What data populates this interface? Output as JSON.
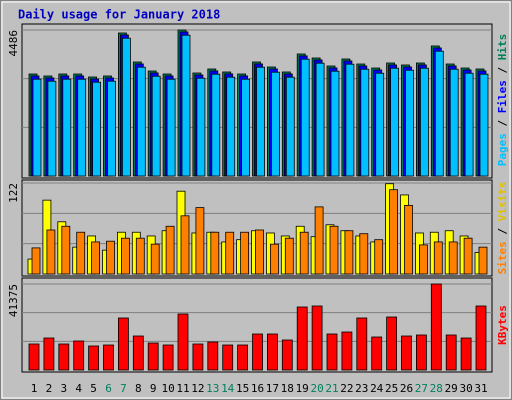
{
  "chart_data": [
    {
      "type": "bar",
      "title": "Daily usage for January 2018",
      "ylim": [
        0,
        4486
      ],
      "yticks": [
        4486
      ],
      "grid_divisions": 3,
      "series": [
        {
          "name": "Hits",
          "color": "#00805c",
          "values": [
            3134,
            3073,
            3134,
            3134,
            3042,
            3073,
            4394,
            3503,
            3226,
            3134,
            4486,
            3165,
            3288,
            3196,
            3134,
            3503,
            3349,
            3196,
            3749,
            3626,
            3380,
            3595,
            3441,
            3318,
            3472,
            3411,
            3472,
            3995,
            3441,
            3318,
            3288
          ]
        },
        {
          "name": "Files",
          "color": "#0000ff",
          "values": [
            3074,
            3013,
            3074,
            3074,
            2982,
            3013,
            4334,
            3443,
            3166,
            3074,
            4426,
            3105,
            3228,
            3136,
            3074,
            3443,
            3289,
            3136,
            3689,
            3566,
            3320,
            3535,
            3381,
            3258,
            3412,
            3351,
            3412,
            3935,
            3381,
            3258,
            3228
          ]
        },
        {
          "name": "Pages",
          "color": "#00c0ff",
          "values": [
            2974,
            2913,
            2974,
            2974,
            2882,
            2913,
            4234,
            3343,
            3066,
            2974,
            4326,
            3005,
            3128,
            3036,
            2974,
            3343,
            3189,
            3036,
            3589,
            3466,
            3220,
            3435,
            3281,
            3158,
            3312,
            3251,
            3312,
            3835,
            3281,
            3158,
            3128
          ]
        }
      ]
    },
    {
      "type": "bar",
      "ylim": [
        0,
        122
      ],
      "yticks": [
        122
      ],
      "grid_divisions": 3,
      "series": [
        {
          "name": "Visits",
          "color": "#ffff00",
          "values": [
            20,
            99,
            70,
            36,
            51,
            32,
            56,
            56,
            51,
            58,
            111,
            55,
            56,
            43,
            46,
            58,
            55,
            51,
            64,
            50,
            66,
            58,
            51,
            43,
            121,
            106,
            55,
            56,
            58,
            51,
            29
          ]
        },
        {
          "name": "Sites",
          "color": "#ff8000",
          "values": [
            35,
            59,
            64,
            56,
            43,
            44,
            48,
            48,
            40,
            64,
            78,
            89,
            56,
            56,
            56,
            59,
            40,
            48,
            56,
            90,
            64,
            58,
            54,
            46,
            113,
            92,
            39,
            43,
            43,
            48,
            36
          ]
        }
      ]
    },
    {
      "type": "bar",
      "ylim": [
        0,
        41375
      ],
      "yticks": [
        41375
      ],
      "grid_divisions": 3,
      "categories": [
        "1",
        "2",
        "3",
        "4",
        "5",
        "6",
        "7",
        "8",
        "9",
        "10",
        "11",
        "12",
        "13",
        "14",
        "15",
        "16",
        "17",
        "18",
        "19",
        "20",
        "21",
        "22",
        "23",
        "24",
        "25",
        "26",
        "27",
        "28",
        "29",
        "30",
        "31"
      ],
      "category_colors": [
        "#000000",
        "#000000",
        "#000000",
        "#000000",
        "#000000",
        "#00805c",
        "#00805c",
        "#000000",
        "#000000",
        "#000000",
        "#000000",
        "#000000",
        "#00805c",
        "#00805c",
        "#000000",
        "#000000",
        "#000000",
        "#000000",
        "#000000",
        "#00805c",
        "#00805c",
        "#000000",
        "#000000",
        "#000000",
        "#000000",
        "#000000",
        "#00805c",
        "#00805c",
        "#000000",
        "#000000",
        "#000000"
      ],
      "series": [
        {
          "name": "KBytes",
          "color": "#ff0000",
          "values": [
            12508,
            15395,
            12508,
            13951,
            11547,
            12028,
            25017,
            16357,
            12990,
            12028,
            26942,
            12508,
            13471,
            12028,
            12028,
            17320,
            17320,
            14433,
            30310,
            30791,
            17320,
            18282,
            25017,
            15876,
            25498,
            16357,
            16839,
            41375,
            16839,
            15395,
            30791
          ]
        }
      ]
    }
  ]
}
